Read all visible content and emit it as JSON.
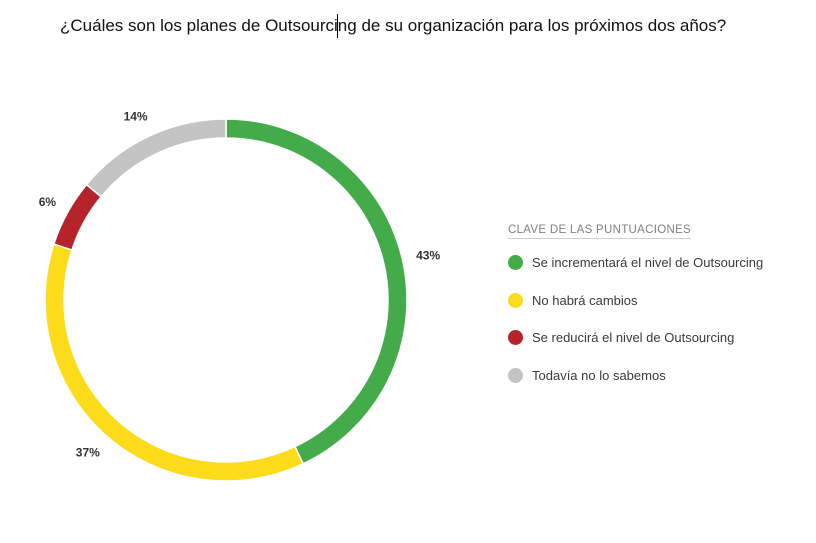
{
  "question": "¿Cuáles son los planes de Outsourcing de su organización para los próximos dos años?",
  "chart_data": {
    "type": "pie",
    "subtype": "donut",
    "title": "¿Cuáles son los planes de Outsourcing de su organización para los próximos dos años?",
    "legend_title": "CLAVE DE LAS PUNTUACIONES",
    "legend_position": "right",
    "slices": [
      {
        "label": "Se incrementará el nivel de Outsourcing",
        "value": 43,
        "display": "43%",
        "color": "#43ab49"
      },
      {
        "label": "No habrá cambios",
        "value": 37,
        "display": "37%",
        "color": "#fbdb1a"
      },
      {
        "label": "Se reducirá el nivel de Outsourcing",
        "value": 6,
        "display": "6%",
        "color": "#b5242a"
      },
      {
        "label": "Todavía no lo sabemos",
        "value": 14,
        "display": "14%",
        "color": "#c4c4c4"
      }
    ]
  }
}
